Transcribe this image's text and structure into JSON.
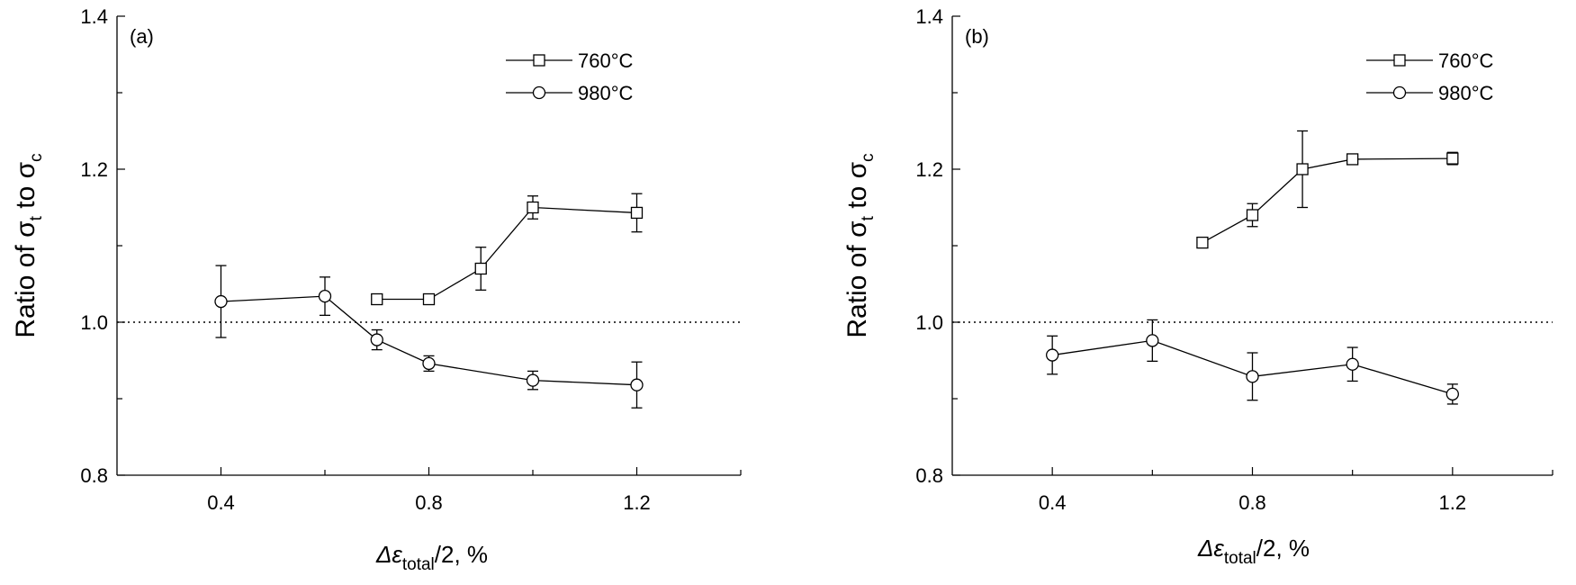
{
  "chart_data": [
    {
      "type": "line",
      "panel_label": "(a)",
      "ylabel": {
        "prefix": "Ratio of ",
        "sym1": "σ",
        "sub1": "t",
        "mid": " to ",
        "sym2": "σ",
        "sub2": "c"
      },
      "xlabel": {
        "delta": "Δ",
        "epsilon": "ε",
        "sub": "total",
        "suffix": "/2, %"
      },
      "xlim": [
        0.2,
        1.4
      ],
      "ylim": [
        0.8,
        1.4
      ],
      "xticks": [
        "0.4",
        "0.8",
        "1.2"
      ],
      "yticks": [
        "0.8",
        "1.0",
        "1.2",
        "1.4"
      ],
      "reference_line_y": 1.0,
      "legend_position": "top-right",
      "series": [
        {
          "name": "760°C",
          "marker": "square",
          "x": [
            0.7,
            0.8,
            0.9,
            1.0,
            1.2
          ],
          "y": [
            1.03,
            1.03,
            1.07,
            1.15,
            1.143
          ],
          "err": [
            0.006,
            0.006,
            0.028,
            0.015,
            0.025
          ]
        },
        {
          "name": "980°C",
          "marker": "circle",
          "x": [
            0.4,
            0.6,
            0.7,
            0.8,
            1.0,
            1.2
          ],
          "y": [
            1.027,
            1.034,
            0.977,
            0.946,
            0.924,
            0.918
          ],
          "err": [
            0.047,
            0.025,
            0.013,
            0.01,
            0.012,
            0.03
          ]
        }
      ]
    },
    {
      "type": "line",
      "panel_label": "(b)",
      "ylabel": {
        "prefix": "Ratio of ",
        "sym1": "σ",
        "sub1": "t",
        "mid": " to ",
        "sym2": "σ",
        "sub2": "c"
      },
      "xlabel": {
        "delta": "Δ",
        "epsilon": "ε",
        "sub": "total",
        "suffix": "/2, %"
      },
      "xlim": [
        0.2,
        1.4
      ],
      "ylim": [
        0.8,
        1.4
      ],
      "xticks": [
        "0.4",
        "0.8",
        "1.2"
      ],
      "yticks": [
        "0.8",
        "1.0",
        "1.2",
        "1.4"
      ],
      "reference_line_y": 1.0,
      "legend_position": "top-right",
      "series": [
        {
          "name": "760°C",
          "marker": "square",
          "x": [
            0.7,
            0.8,
            0.9,
            1.0,
            1.2
          ],
          "y": [
            1.104,
            1.14,
            1.2,
            1.213,
            1.214
          ],
          "err": [
            0.006,
            0.015,
            0.05,
            0.006,
            0.008
          ]
        },
        {
          "name": "980°C",
          "marker": "circle",
          "x": [
            0.4,
            0.6,
            0.8,
            1.0,
            1.2
          ],
          "y": [
            0.957,
            0.976,
            0.929,
            0.945,
            0.906
          ],
          "err": [
            0.025,
            0.027,
            0.031,
            0.022,
            0.013
          ]
        }
      ]
    }
  ]
}
